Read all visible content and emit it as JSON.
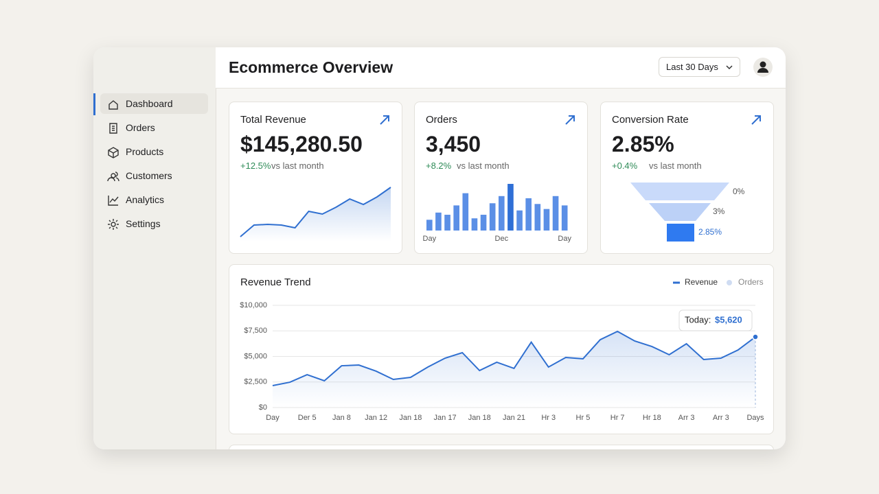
{
  "app": {
    "title": "Ecommerce Overview",
    "date_range": "Last 30 Days"
  },
  "nav": [
    "Dashboard",
    "Orders",
    "Products",
    "Customers",
    "Analytics",
    "Settings"
  ],
  "kpis": [
    {
      "label": "Total Revenue",
      "value": "$145,280.50",
      "change": "+12.5%",
      "note": "vs last month"
    },
    {
      "label": "Orders",
      "value": "3,450",
      "change": "+8.2%",
      "note": "vs last month"
    },
    {
      "label": "Conversion Rate",
      "value": "2.85%",
      "change": "+0.4%",
      "note": "vs last month"
    }
  ],
  "revenue_sparkline": {
    "type": "area",
    "color": "#2f6fd0",
    "values": [
      0,
      17,
      18,
      17,
      13,
      37,
      33,
      43,
      55,
      47,
      58,
      72
    ]
  },
  "orders_bars": {
    "type": "bar",
    "color": "#5b8fe6",
    "highlight_color": "#2f6fd6",
    "highlight": 9,
    "categories": [
      "Day",
      null,
      null,
      null,
      null,
      null,
      null,
      null,
      "Dec",
      null,
      null,
      null,
      null,
      null,
      null,
      "Day"
    ],
    "values": [
      15,
      25,
      22,
      35,
      52,
      17,
      22,
      38,
      48,
      65,
      28,
      45,
      37,
      30,
      48,
      35
    ]
  },
  "funnel": {
    "labels": [
      "0%",
      "3%",
      "2.85%"
    ]
  },
  "chart_data": {
    "type": "line",
    "title": "Revenue Trend",
    "color": "#2f6fd0",
    "legend": [
      {
        "name": "Revenue",
        "color": "#2f6fd0"
      },
      {
        "name": "Orders",
        "color": "#cfdcf2"
      }
    ],
    "categories": [
      "Day",
      null,
      "Der 5",
      null,
      "Jan 8",
      null,
      "Jan 12",
      null,
      "Jan 18",
      null,
      "Jan 17",
      null,
      "Jan 18",
      null,
      "Jan 21",
      null,
      "Hr 3",
      null,
      "Hr 5",
      null,
      "Hr 7",
      null,
      "Hr 18",
      null,
      "Arr 3",
      null,
      "Arr 3",
      null,
      "Days"
    ],
    "values": [
      2150,
      2480,
      3220,
      2620,
      4090,
      4160,
      3560,
      2750,
      2950,
      3960,
      4830,
      5370,
      3620,
      4430,
      3830,
      6400,
      3960,
      4900,
      4770,
      6640,
      7450,
      6510,
      5970,
      5170,
      6240,
      4700,
      4830,
      5640,
      6910
    ],
    "ylim": [
      0,
      10000
    ],
    "yticks": [
      {
        "value": 0,
        "label": "$0"
      },
      {
        "value": 2500,
        "label": "$2,500"
      },
      {
        "value": 5000,
        "label": "$5,000"
      },
      {
        "value": 7500,
        "label": "$7,500"
      },
      {
        "value": 10000,
        "label": "$10,000"
      }
    ],
    "grid": true,
    "tooltip": {
      "label": "Today:",
      "value": "$5,620"
    }
  }
}
